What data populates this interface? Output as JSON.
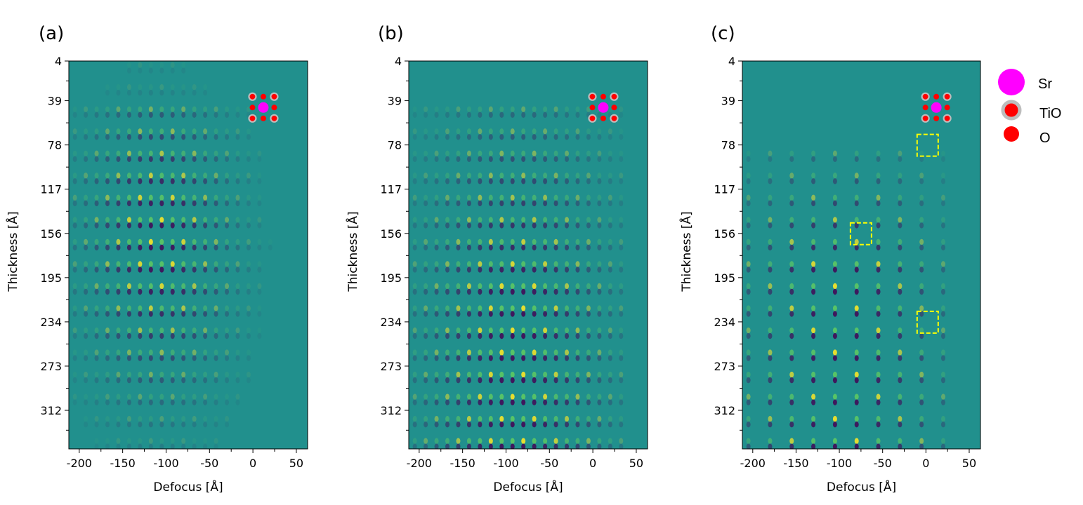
{
  "chart_data": [
    {
      "type": "heatmap",
      "panel_label": "(a)",
      "xlabel": "Defocus [Å]",
      "ylabel": "Thickness [Å]",
      "xlim": [
        -212,
        63
      ],
      "ylim": [
        4,
        346
      ],
      "xticks": [
        -200,
        -150,
        -100,
        -50,
        0,
        50
      ],
      "xtick_labels": [
        "-200",
        "-150",
        "-100",
        "-50",
        "0",
        "50"
      ],
      "yticks": [
        4,
        39,
        78,
        117,
        156,
        195,
        234,
        273,
        312
      ],
      "ytick_labels": [
        "4",
        "39",
        "78",
        "117",
        "156",
        "195",
        "234",
        "273",
        "312"
      ],
      "colormap": "viridis",
      "contrast_peak_defocus": -110,
      "contrast_peak_thickness": 165,
      "markers": []
    },
    {
      "type": "heatmap",
      "panel_label": "(b)",
      "xlabel": "Defocus [Å]",
      "ylabel": "Thickness [Å]",
      "xlim": [
        -212,
        63
      ],
      "ylim": [
        4,
        346
      ],
      "xticks": [
        -200,
        -150,
        -100,
        -50,
        0,
        50
      ],
      "xtick_labels": [
        "-200",
        "-150",
        "-100",
        "-50",
        "0",
        "50"
      ],
      "yticks": [
        4,
        39,
        78,
        117,
        156,
        195,
        234,
        273,
        312
      ],
      "ytick_labels": [
        "4",
        "39",
        "78",
        "117",
        "156",
        "195",
        "234",
        "273",
        "312"
      ],
      "colormap": "viridis",
      "contrast_peak_defocus": -90,
      "contrast_peak_thickness": 250,
      "markers": []
    },
    {
      "type": "heatmap",
      "panel_label": "(c)",
      "xlabel": "Defocus [Å]",
      "ylabel": "Thickness [Å]",
      "xlim": [
        -212,
        63
      ],
      "ylim": [
        4,
        346
      ],
      "xticks": [
        -200,
        -150,
        -100,
        -50,
        0,
        50
      ],
      "xtick_labels": [
        "-200",
        "-150",
        "-100",
        "-50",
        "0",
        "50"
      ],
      "yticks": [
        4,
        39,
        78,
        117,
        156,
        195,
        234,
        273,
        312
      ],
      "ytick_labels": [
        "4",
        "39",
        "78",
        "117",
        "156",
        "195",
        "234",
        "273",
        "312"
      ],
      "colormap": "viridis",
      "contrast_peak_defocus": -100,
      "contrast_peak_thickness": 260,
      "markers": [
        {
          "defocus": 2,
          "thickness": 78
        },
        {
          "defocus": -75,
          "thickness": 156
        },
        {
          "defocus": 2,
          "thickness": 234
        }
      ]
    }
  ],
  "legend": [
    {
      "label": "Sr",
      "color": "#ff00ff"
    },
    {
      "label": "TiO",
      "color": "#ff0000",
      "edge": "#bdbdbd"
    },
    {
      "label": "O",
      "color": "#ff0000"
    }
  ],
  "colors": {
    "background": "#21908d",
    "frame": "#000000",
    "marker": "#ffff00"
  }
}
